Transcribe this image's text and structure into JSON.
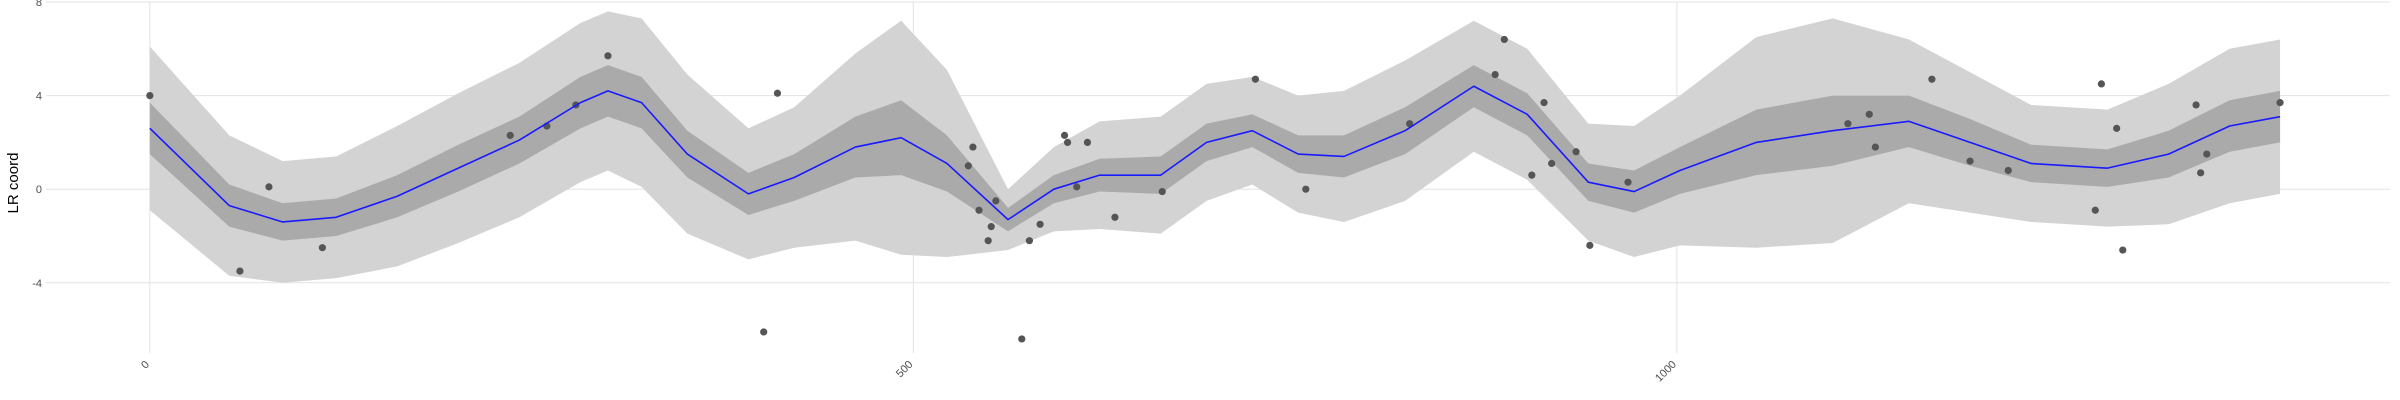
{
  "chart_data": {
    "type": "scatter",
    "y_label": "LR coord",
    "xlim": [
      -68,
      1467
    ],
    "ylim": [
      -7,
      8
    ],
    "xticks": [
      0,
      500,
      1000
    ],
    "yticks": [
      -4,
      0,
      4,
      8
    ],
    "grid": true,
    "point_color": "#555555",
    "line_color": "#1a1aff",
    "band_color": "#aaaaaa",
    "outer_band_color": "#d3d3d3",
    "x": [
      0,
      59,
      78,
      113,
      236,
      260,
      279,
      300,
      402,
      411,
      536,
      539,
      543,
      551,
      549,
      554,
      571,
      576,
      583,
      599,
      601,
      607,
      614,
      632,
      663,
      724,
      757,
      825,
      881,
      887,
      913,
      905,
      918,
      934,
      943,
      968,
      1112,
      1126,
      1130,
      1167,
      1192,
      1217,
      1274,
      1278,
      1288,
      1292,
      1340,
      1343,
      1347,
      1395
    ],
    "values": [
      4.0,
      -3.5,
      0.1,
      -2.5,
      2.3,
      2.7,
      3.6,
      5.7,
      -6.1,
      4.1,
      1.0,
      1.8,
      -0.9,
      -1.6,
      -2.2,
      -0.5,
      -6.4,
      -2.2,
      -1.5,
      2.3,
      2.0,
      0.1,
      2.0,
      -1.2,
      -0.1,
      4.7,
      0.0,
      2.8,
      4.9,
      6.4,
      3.7,
      0.6,
      1.1,
      1.6,
      -2.4,
      0.3,
      2.8,
      3.2,
      1.8,
      4.7,
      1.2,
      0.8,
      -0.9,
      4.5,
      2.6,
      -2.6,
      3.6,
      0.7,
      1.5,
      3.7
    ],
    "fit": {
      "x": [
        0,
        52,
        87,
        122,
        162,
        202,
        242,
        282,
        300,
        322,
        352,
        392,
        422,
        462,
        492,
        522,
        562,
        592,
        622,
        662,
        692,
        722,
        752,
        782,
        822,
        867,
        902,
        942,
        972,
        1002,
        1052,
        1102,
        1152,
        1192,
        1232,
        1282,
        1322,
        1362,
        1395
      ],
      "values": [
        2.6,
        -0.7,
        -1.4,
        -1.2,
        -0.3,
        0.9,
        2.1,
        3.7,
        4.2,
        3.7,
        1.5,
        -0.2,
        0.5,
        1.8,
        2.2,
        1.1,
        -1.3,
        0,
        0.6,
        0.6,
        2.0,
        2.5,
        1.5,
        1.4,
        2.5,
        4.4,
        3.2,
        0.3,
        -0.1,
        0.8,
        2.0,
        2.5,
        2.9,
        2.0,
        1.1,
        0.9,
        1.5,
        2.7,
        3.1
      ],
      "upper": [
        6.1,
        2.3,
        1.2,
        1.4,
        2.7,
        4.1,
        5.4,
        7.1,
        7.6,
        7.3,
        4.9,
        2.6,
        3.5,
        5.8,
        7.2,
        5.1,
        0.0,
        1.8,
        2.9,
        3.1,
        4.5,
        4.8,
        4.0,
        4.2,
        5.5,
        7.2,
        6.0,
        2.8,
        2.7,
        4.0,
        6.5,
        7.3,
        6.4,
        5.0,
        3.6,
        3.4,
        4.5,
        6.0,
        6.4
      ],
      "lower": [
        -0.9,
        -3.7,
        -4.0,
        -3.8,
        -3.3,
        -2.3,
        -1.2,
        0.3,
        0.8,
        0.1,
        -1.9,
        -3.0,
        -2.5,
        -2.2,
        -2.8,
        -2.9,
        -2.6,
        -1.8,
        -1.7,
        -1.9,
        -0.5,
        0.2,
        -1.0,
        -1.4,
        -0.5,
        1.6,
        0.4,
        -2.2,
        -2.9,
        -2.4,
        -2.5,
        -2.3,
        -0.6,
        -1.0,
        -1.4,
        -1.6,
        -1.5,
        -0.6,
        -0.2
      ],
      "band_upper": [
        3.7,
        0.2,
        -0.6,
        -0.4,
        0.6,
        1.9,
        3.1,
        4.8,
        5.3,
        4.8,
        2.5,
        0.7,
        1.5,
        3.1,
        3.8,
        2.3,
        -0.8,
        0.6,
        1.3,
        1.4,
        2.8,
        3.2,
        2.3,
        2.3,
        3.5,
        5.3,
        4.1,
        1.1,
        0.8,
        1.8,
        3.4,
        4.0,
        4.0,
        3.0,
        1.9,
        1.7,
        2.5,
        3.8,
        4.2
      ],
      "band_lower": [
        1.5,
        -1.6,
        -2.2,
        -2.0,
        -1.2,
        -0.1,
        1.1,
        2.6,
        3.1,
        2.6,
        0.5,
        -1.1,
        -0.5,
        0.5,
        0.6,
        -0.1,
        -1.8,
        -0.6,
        -0.1,
        -0.2,
        1.2,
        1.8,
        0.7,
        0.5,
        1.5,
        3.5,
        2.3,
        -0.5,
        -1.0,
        -0.2,
        0.6,
        1.0,
        1.8,
        1.0,
        0.3,
        0.1,
        0.5,
        1.6,
        2.0
      ]
    }
  }
}
